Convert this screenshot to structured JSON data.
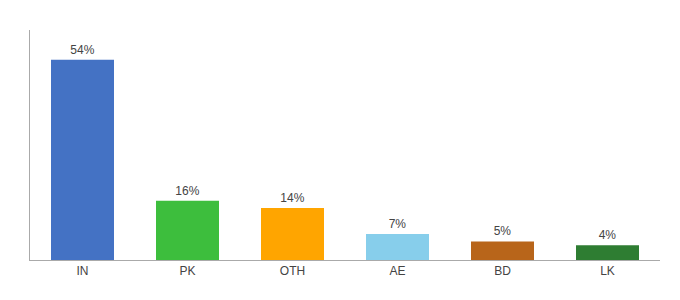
{
  "chart_data": {
    "type": "bar",
    "categories": [
      "IN",
      "PK",
      "OTH",
      "AE",
      "BD",
      "LK"
    ],
    "values": [
      54,
      16,
      14,
      7,
      5,
      4
    ],
    "value_labels": [
      "54%",
      "16%",
      "14%",
      "7%",
      "5%",
      "4%"
    ],
    "colors": [
      "#4472C4",
      "#3DBE3D",
      "#FFA500",
      "#87CEEB",
      "#B8651A",
      "#2E7D32"
    ],
    "ylim": [
      0,
      62
    ],
    "data_labels": true,
    "tick_labels": "x",
    "grid": false
  }
}
